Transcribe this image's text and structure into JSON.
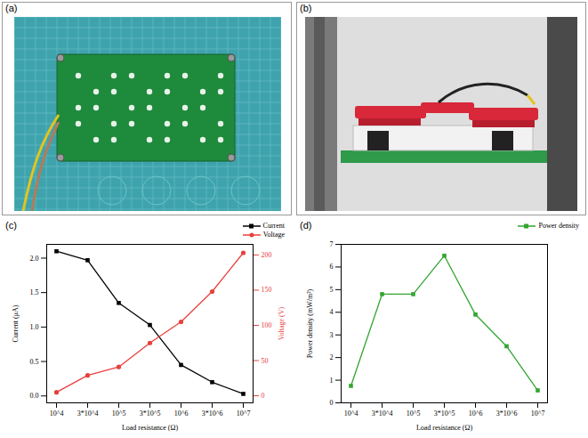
{
  "panels": [
    {
      "letter": "(a)"
    },
    {
      "letter": "(b)"
    }
  ],
  "chart_data": [
    {
      "type": "line",
      "letter": "(c)",
      "x_label": "Load resistance (Ω)",
      "y_label": "Current (μA)",
      "y2_label": "Voltage (V)",
      "categories": [
        "10^4",
        "3*10^4",
        "10^5",
        "3*10^5",
        "10^6",
        "3*10^6",
        "10^7"
      ],
      "series": [
        {
          "name": "Current",
          "color": "#000000",
          "marker": "square",
          "values": [
            2.1,
            1.97,
            1.35,
            1.03,
            0.45,
            0.2,
            0.03
          ]
        },
        {
          "name": "Voltage",
          "color": "#e8413c",
          "marker": "circle",
          "axis": "y2",
          "values": [
            5,
            29,
            41,
            75,
            105,
            148,
            203
          ]
        }
      ],
      "ylim": [
        -0.1,
        2.2
      ],
      "yticks": [
        {
          "value": 0,
          "label": "0.0"
        },
        {
          "value": 0.5,
          "label": "0.5"
        },
        {
          "value": 1,
          "label": "1.0"
        },
        {
          "value": 1.5,
          "label": "1.5"
        },
        {
          "value": 2,
          "label": "2.0"
        }
      ],
      "y2lim": [
        -10,
        215
      ],
      "y2ticks": [
        0,
        50,
        100,
        150,
        200
      ],
      "legend": "top-right"
    },
    {
      "type": "line",
      "letter": "(d)",
      "x_label": "Load resistance (Ω)",
      "y_label": "Power density (mW/m²)",
      "categories": [
        "10^4",
        "3*10^4",
        "10^5",
        "3*10^5",
        "10^6",
        "3*10^6",
        "10^7"
      ],
      "series": [
        {
          "name": "Power density",
          "color": "#33a532",
          "marker": "square",
          "values": [
            0.75,
            4.8,
            4.8,
            6.5,
            3.9,
            2.5,
            0.55
          ]
        }
      ],
      "ylim": [
        0,
        7
      ],
      "yticks": [
        0,
        1,
        2,
        3,
        4,
        5,
        6,
        7
      ],
      "legend": "top-right"
    }
  ]
}
